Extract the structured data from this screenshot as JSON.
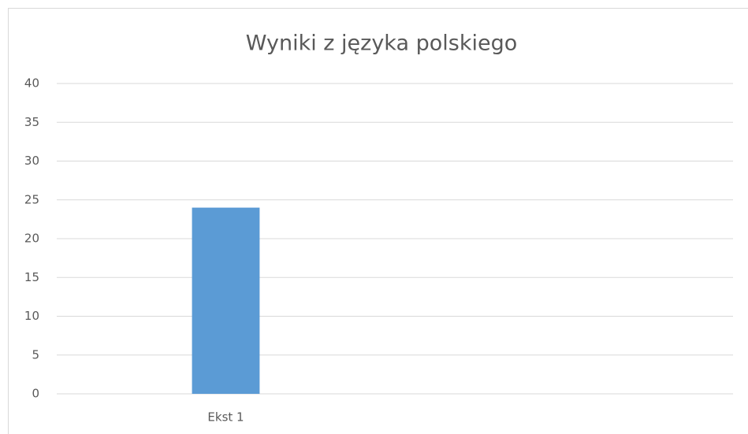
{
  "chart_data": {
    "type": "bar",
    "title": "Wyniki z języka polskiego",
    "categories": [
      "Ekst 1",
      null
    ],
    "values": [
      24,
      null
    ],
    "color": "#5b9bd5",
    "ylim": [
      0,
      40
    ],
    "yticks": [
      0,
      5,
      10,
      15,
      20,
      25,
      30,
      35,
      40
    ],
    "grid": true
  }
}
